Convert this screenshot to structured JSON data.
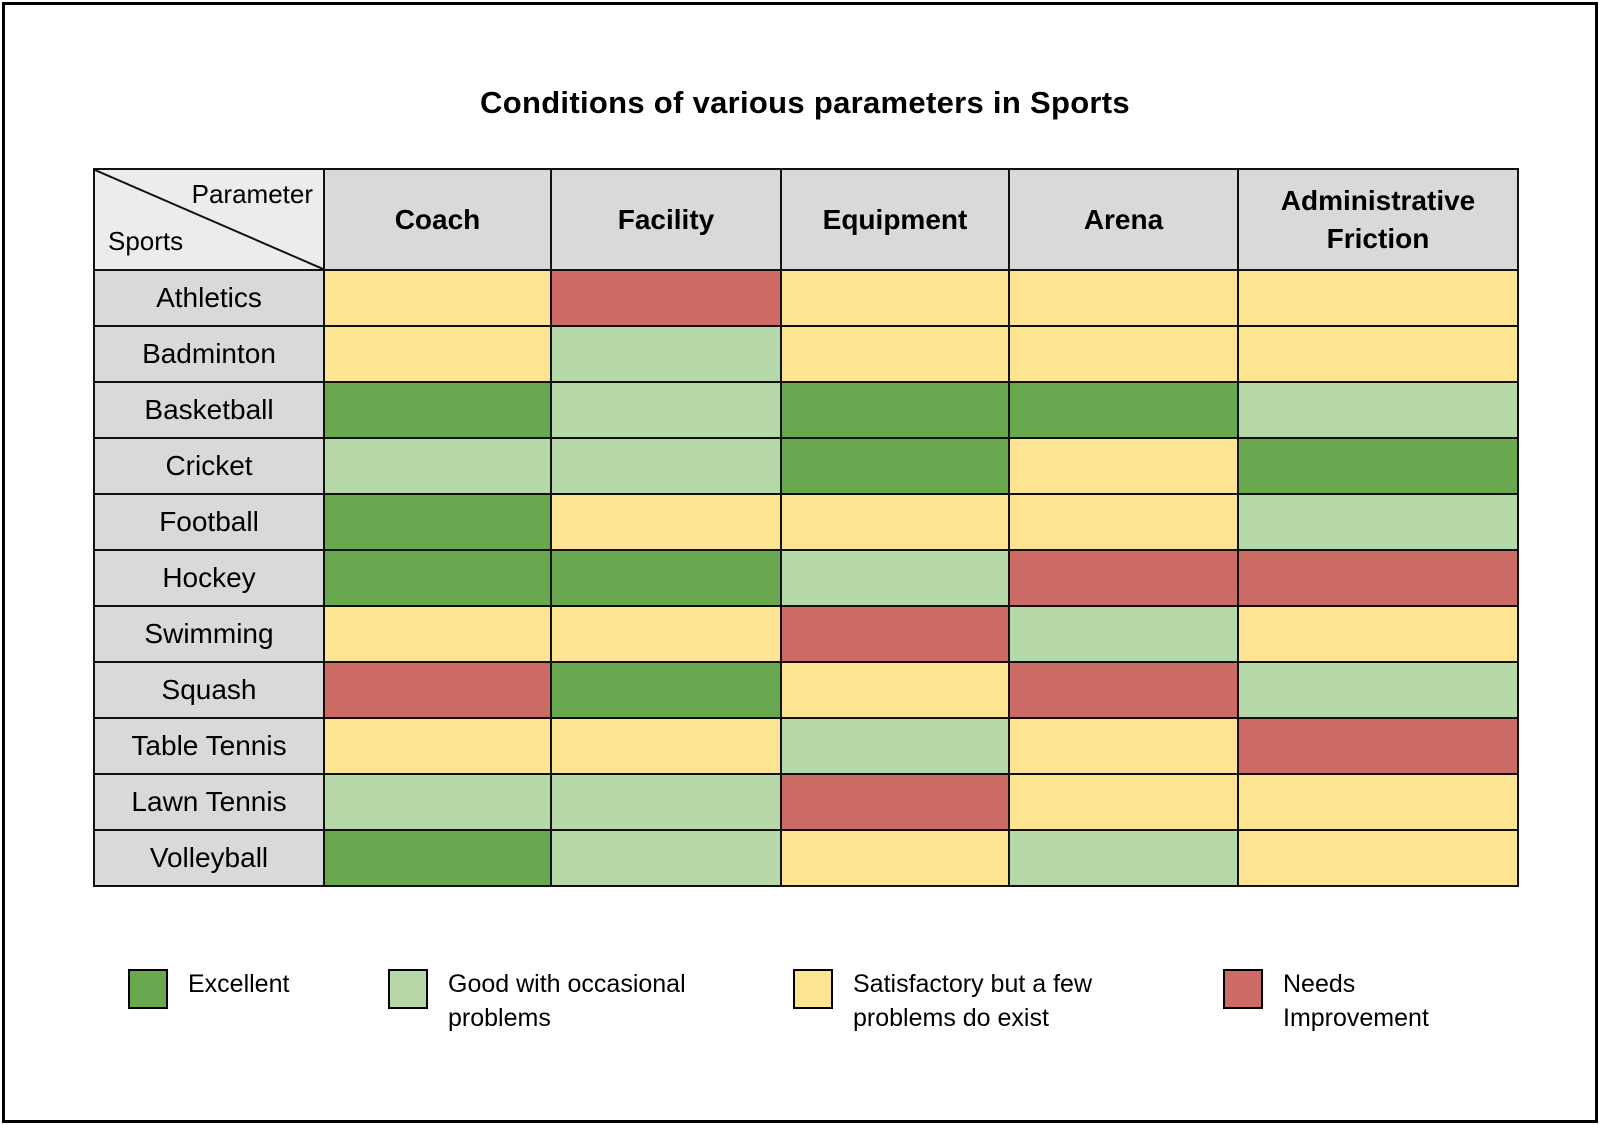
{
  "title": "Conditions of various parameters in Sports",
  "corner": {
    "top_label": "Parameter",
    "bottom_label": "Sports"
  },
  "chart_data": {
    "type": "heatmap",
    "title": "Conditions of various parameters in Sports",
    "columns": [
      "Coach",
      "Facility",
      "Equipment",
      "Arena",
      "Administrative Friction"
    ],
    "rows": [
      "Athletics",
      "Badminton",
      "Basketball",
      "Cricket",
      "Football",
      "Hockey",
      "Swimming",
      "Squash",
      "Table Tennis",
      "Lawn Tennis",
      "Volleyball"
    ],
    "cells": [
      [
        "satisfactory",
        "needs_improvement",
        "satisfactory",
        "satisfactory",
        "satisfactory"
      ],
      [
        "satisfactory",
        "good",
        "satisfactory",
        "satisfactory",
        "satisfactory"
      ],
      [
        "excellent",
        "good",
        "excellent",
        "excellent",
        "good"
      ],
      [
        "good",
        "good",
        "excellent",
        "satisfactory",
        "excellent"
      ],
      [
        "excellent",
        "satisfactory",
        "satisfactory",
        "satisfactory",
        "good"
      ],
      [
        "excellent",
        "excellent",
        "good",
        "needs_improvement",
        "needs_improvement"
      ],
      [
        "satisfactory",
        "satisfactory",
        "needs_improvement",
        "good",
        "satisfactory"
      ],
      [
        "needs_improvement",
        "excellent",
        "satisfactory",
        "needs_improvement",
        "good"
      ],
      [
        "satisfactory",
        "satisfactory",
        "good",
        "satisfactory",
        "needs_improvement"
      ],
      [
        "good",
        "good",
        "needs_improvement",
        "satisfactory",
        "satisfactory"
      ],
      [
        "excellent",
        "good",
        "satisfactory",
        "good",
        "satisfactory"
      ]
    ],
    "legend": [
      {
        "key": "excellent",
        "label": "Excellent",
        "color": "#6aa84f"
      },
      {
        "key": "good",
        "label": "Good with occasional problems",
        "color": "#b6d7a8"
      },
      {
        "key": "satisfactory",
        "label": "Satisfactory but a few problems do exist",
        "color": "#fce493"
      },
      {
        "key": "needs_improvement",
        "label": "Needs Improvement",
        "color": "#cd6a64"
      }
    ],
    "legend_position": "bottom",
    "header_background": "#d9d9d9",
    "corner_background": "#ececec"
  }
}
